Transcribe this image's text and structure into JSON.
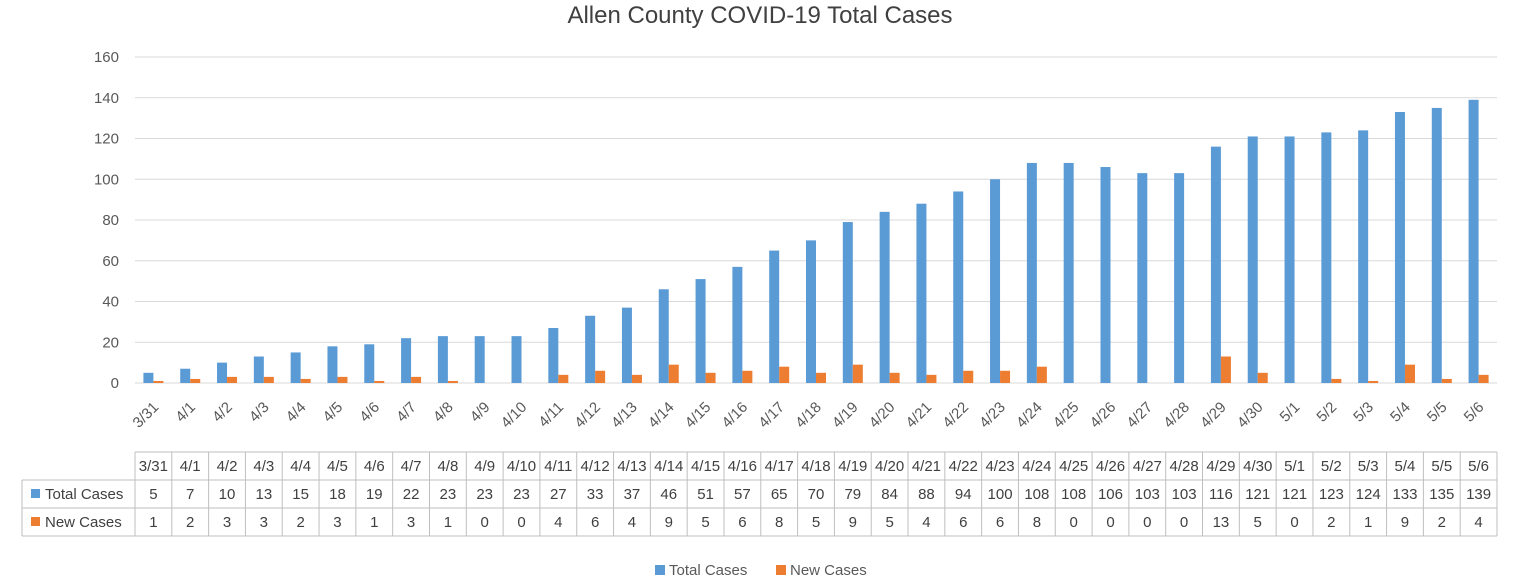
{
  "chart_data": {
    "type": "bar",
    "title": "Allen County COVID-19 Total Cases",
    "categories": [
      "3/31",
      "4/1",
      "4/2",
      "4/3",
      "4/4",
      "4/5",
      "4/6",
      "4/7",
      "4/8",
      "4/9",
      "4/10",
      "4/11",
      "4/12",
      "4/13",
      "4/14",
      "4/15",
      "4/16",
      "4/17",
      "4/18",
      "4/19",
      "4/20",
      "4/21",
      "4/22",
      "4/23",
      "4/24",
      "4/25",
      "4/26",
      "4/27",
      "4/28",
      "4/29",
      "4/30",
      "5/1",
      "5/2",
      "5/3",
      "5/4",
      "5/5",
      "5/6"
    ],
    "series": [
      {
        "name": "Total Cases",
        "color": "#5b9bd5",
        "values": [
          5,
          7,
          10,
          13,
          15,
          18,
          19,
          22,
          23,
          23,
          23,
          27,
          33,
          37,
          46,
          51,
          57,
          65,
          70,
          79,
          84,
          88,
          94,
          100,
          108,
          108,
          106,
          103,
          103,
          116,
          121,
          121,
          123,
          124,
          133,
          135,
          139
        ]
      },
      {
        "name": "New Cases",
        "color": "#ed7d31",
        "values": [
          1,
          2,
          3,
          3,
          2,
          3,
          1,
          3,
          1,
          0,
          0,
          4,
          6,
          4,
          9,
          5,
          6,
          8,
          5,
          9,
          5,
          4,
          6,
          6,
          8,
          0,
          0,
          0,
          0,
          13,
          5,
          0,
          2,
          1,
          9,
          2,
          4
        ]
      }
    ],
    "ylim": [
      0,
      160
    ],
    "yticks": [
      0,
      20,
      40,
      60,
      80,
      100,
      120,
      140,
      160
    ],
    "grid": true,
    "data_table": true,
    "legend_position": "bottom"
  }
}
